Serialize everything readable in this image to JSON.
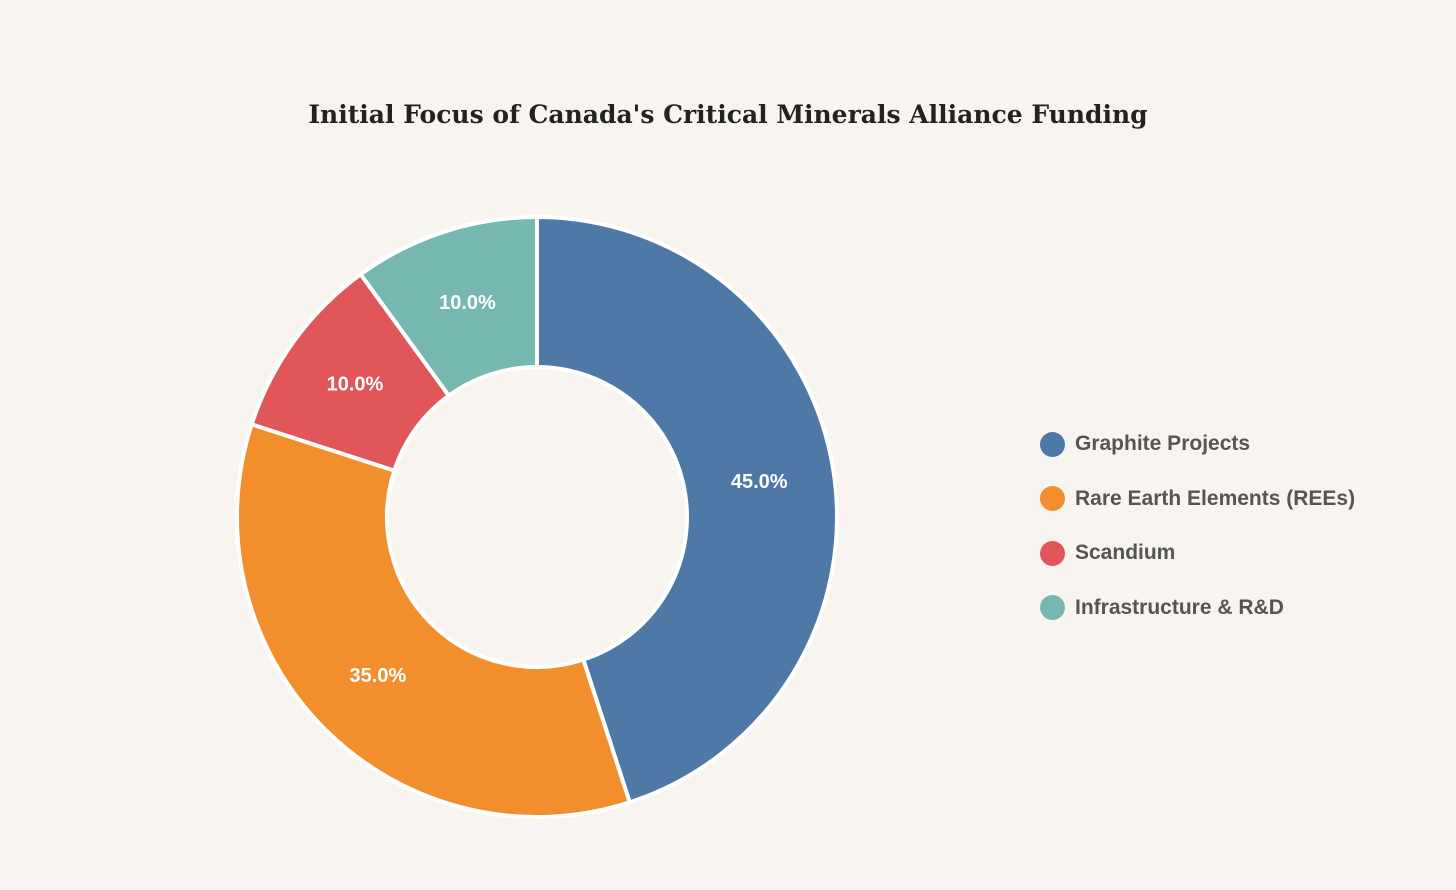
{
  "chart_data": {
    "type": "pie",
    "title": "Initial Focus of Canada's Critical Minerals Alliance Funding",
    "categories": [
      "Graphite Projects",
      "Rare Earth Elements (REEs)",
      "Scandium",
      "Infrastructure & R&D"
    ],
    "values": [
      45.0,
      35.0,
      10.0,
      10.0
    ],
    "labels": [
      "45.0%",
      "35.0%",
      "10.0%",
      "10.0%"
    ],
    "colors": [
      "#4e79a7",
      "#f28e2c",
      "#e15759",
      "#76b7b2"
    ],
    "hole": 0.5,
    "direction": "clockwise",
    "legend_position": "right"
  }
}
